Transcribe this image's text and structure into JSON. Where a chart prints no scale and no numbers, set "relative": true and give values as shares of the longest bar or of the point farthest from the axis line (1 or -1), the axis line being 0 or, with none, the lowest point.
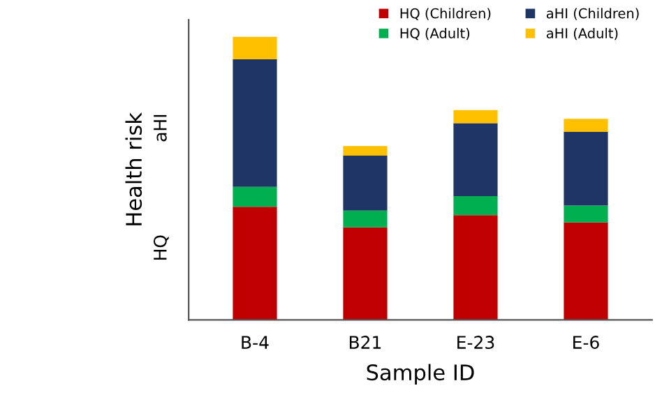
{
  "chart_data": {
    "type": "bar",
    "stacked": true,
    "relative": true,
    "xlabel": "Sample ID",
    "ylabel": "Health risk",
    "annotations": [
      "HQ",
      "aHI"
    ],
    "categories": [
      "B-4",
      "B21",
      "E-23",
      "E-6"
    ],
    "series": [
      {
        "name": "HQ (Children)",
        "color": "#c00000",
        "values": [
          0.4,
          0.327,
          0.37,
          0.344
        ]
      },
      {
        "name": "HQ (Adult)",
        "color": "#00b050",
        "values": [
          0.07,
          0.059,
          0.067,
          0.06
        ]
      },
      {
        "name": "aHI (Children)",
        "color": "#1f3566",
        "values": [
          0.45,
          0.194,
          0.258,
          0.26
        ]
      },
      {
        "name": "aHI (Adult)",
        "color": "#ffc000",
        "values": [
          0.08,
          0.034,
          0.046,
          0.046
        ]
      }
    ],
    "legend": "top right",
    "grid": false
  }
}
